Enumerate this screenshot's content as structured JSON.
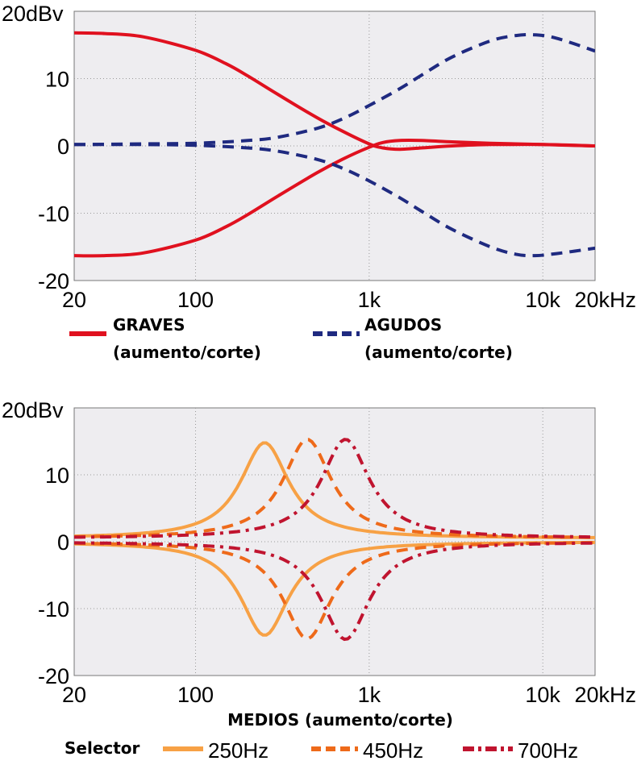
{
  "chart_data": [
    {
      "type": "line",
      "xscale": "log",
      "xlim": [
        20,
        20000
      ],
      "ylim": [
        -20,
        20
      ],
      "ylabel": "20dBv",
      "y_ticks": [
        {
          "v": 20,
          "label": "20dBv"
        },
        {
          "v": 10,
          "label": "10"
        },
        {
          "v": 0,
          "label": "0"
        },
        {
          "v": -10,
          "label": "-10"
        },
        {
          "v": -20,
          "label": "-20"
        }
      ],
      "x_ticks": [
        {
          "v": 20,
          "label": "20"
        },
        {
          "v": 100,
          "label": "100"
        },
        {
          "v": 1000,
          "label": "1k"
        },
        {
          "v": 10000,
          "label": "10k"
        },
        {
          "v": 20000,
          "label": "20kHz"
        }
      ],
      "grid": true,
      "legend": [
        {
          "series": "GRAVES",
          "lines": [
            "GRAVES",
            "(aumento/corte)"
          ],
          "color": "#e0111f",
          "dash": "solid"
        },
        {
          "series": "AGUDOS",
          "lines": [
            "AGUDOS",
            " (aumento/corte)"
          ],
          "color": "#1f2a80",
          "dash": "dashed"
        }
      ],
      "series": [
        {
          "name": "GRAVES",
          "color": "#e0111f",
          "dash": "solid",
          "x": [
            20,
            30,
            50,
            100,
            150,
            200,
            300,
            500,
            700,
            1000,
            1200,
            1500,
            2000,
            3000,
            5000,
            10000,
            20000
          ],
          "y": [
            16.8,
            16.7,
            16.2,
            14.2,
            12.2,
            10.4,
            7.6,
            4.2,
            2.2,
            0.3,
            -0.3,
            -0.5,
            -0.3,
            0.0,
            0.2,
            0.2,
            0.0
          ]
        },
        {
          "name": "GRAVES",
          "color": "#e0111f",
          "dash": "solid",
          "x": [
            20,
            30,
            50,
            100,
            150,
            200,
            300,
            500,
            700,
            1000,
            1200,
            1500,
            2000,
            3000,
            5000,
            10000,
            20000
          ],
          "y": [
            -16.3,
            -16.3,
            -15.9,
            -14.0,
            -12.0,
            -10.2,
            -7.4,
            -4.0,
            -2.0,
            -0.2,
            0.5,
            0.8,
            0.8,
            0.6,
            0.4,
            0.2,
            0.0
          ]
        },
        {
          "name": "AGUDOS",
          "color": "#1f2a80",
          "dash": "dashed",
          "x": [
            20,
            50,
            100,
            200,
            300,
            500,
            700,
            1000,
            1500,
            2000,
            3000,
            5000,
            7000,
            9000,
            12000,
            20000
          ],
          "y": [
            0.2,
            0.3,
            0.4,
            0.8,
            1.3,
            2.6,
            4.0,
            6.0,
            8.5,
            10.5,
            13.2,
            15.6,
            16.4,
            16.5,
            16.0,
            14.1
          ]
        },
        {
          "name": "AGUDOS",
          "color": "#1f2a80",
          "dash": "dashed",
          "x": [
            20,
            50,
            100,
            200,
            300,
            500,
            700,
            1000,
            1500,
            2000,
            3000,
            5000,
            7000,
            9000,
            12000,
            20000
          ],
          "y": [
            0.2,
            0.2,
            0.1,
            -0.3,
            -0.8,
            -2.0,
            -3.3,
            -5.2,
            -7.7,
            -9.7,
            -12.4,
            -15.0,
            -16.1,
            -16.3,
            -16.0,
            -15.2
          ]
        }
      ]
    },
    {
      "type": "line",
      "xscale": "log",
      "xlim": [
        20,
        20000
      ],
      "ylim": [
        -20,
        20
      ],
      "ylabel": "20dBv",
      "xlabel": "MEDIOS (aumento/corte)",
      "y_ticks": [
        {
          "v": 20,
          "label": "20dBv"
        },
        {
          "v": 10,
          "label": "10"
        },
        {
          "v": 0,
          "label": "0"
        },
        {
          "v": -10,
          "label": "-10"
        },
        {
          "v": -20,
          "label": "-20"
        }
      ],
      "x_ticks": [
        {
          "v": 20,
          "label": "20"
        },
        {
          "v": 100,
          "label": "100"
        },
        {
          "v": 1000,
          "label": "1k"
        },
        {
          "v": 10000,
          "label": "10k"
        },
        {
          "v": 20000,
          "label": "20kHz"
        }
      ],
      "grid": true,
      "legend_title": "Selector",
      "legend": [
        {
          "series": "250Hz",
          "label": "250Hz",
          "color": "#f7a145",
          "dash": "solid"
        },
        {
          "series": "450Hz",
          "label": "450Hz",
          "color": "#ee6a1a",
          "dash": "dashed"
        },
        {
          "series": "700Hz",
          "label": "700Hz",
          "color": "#c0142f",
          "dash": "dashdot"
        }
      ],
      "peak_model": {
        "gain": 14.5,
        "q": 1.0
      },
      "series": [
        {
          "name": "250Hz",
          "color": "#f7a145",
          "dash": "solid",
          "fc": 250,
          "boost": 14.3,
          "cut": -14.0
        },
        {
          "name": "450Hz",
          "color": "#ee6a1a",
          "dash": "dashed",
          "fc": 440,
          "boost": 14.8,
          "cut": -14.5
        },
        {
          "name": "700Hz",
          "color": "#c0142f",
          "dash": "dashdot",
          "fc": 730,
          "boost": 14.8,
          "cut": -14.6
        }
      ]
    }
  ]
}
